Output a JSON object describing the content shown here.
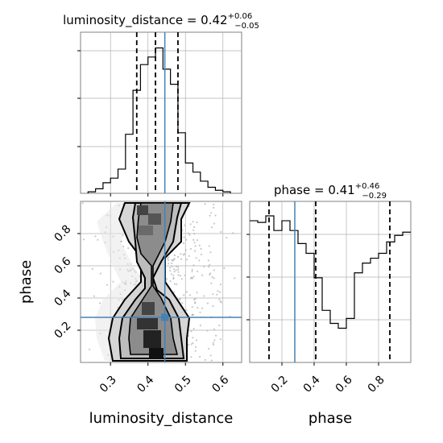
{
  "colors": {
    "truth": "#4682b4",
    "grid": "#b0b0b0",
    "hist": "#000000",
    "scatter": "#9a9a9a"
  },
  "chart_data": [
    {
      "panel": "luminosity_distance-histogram",
      "type": "histogram",
      "title_main": "luminosity_distance = 0.42",
      "title_sup": "+0.06",
      "title_sub": "−0.05",
      "xlim": [
        0.22,
        0.65
      ],
      "grid": true,
      "bin_edges": [
        0.24,
        0.26,
        0.28,
        0.3,
        0.32,
        0.34,
        0.36,
        0.38,
        0.4,
        0.42,
        0.44,
        0.46,
        0.48,
        0.5,
        0.52,
        0.54,
        0.56,
        0.58,
        0.6,
        0.62
      ],
      "counts_norm": [
        0.01,
        0.03,
        0.07,
        0.1,
        0.16,
        0.39,
        0.68,
        0.85,
        0.9,
        0.96,
        0.82,
        0.72,
        0.4,
        0.2,
        0.14,
        0.08,
        0.04,
        0.02,
        0.01
      ],
      "quantiles": [
        0.37,
        0.42,
        0.48
      ],
      "truth": 0.445
    },
    {
      "panel": "phase-histogram",
      "type": "histogram",
      "title_main": "phase = 0.41",
      "title_sup": "+0.46",
      "title_sub": "−0.29",
      "xlim": [
        0.0,
        1.0
      ],
      "xticks": [
        "0.2",
        "0.4",
        "0.6",
        "0.8"
      ],
      "xlabel": "phase",
      "grid": true,
      "bin_edges": [
        0.0,
        0.05,
        0.1,
        0.15,
        0.2,
        0.25,
        0.3,
        0.35,
        0.4,
        0.45,
        0.5,
        0.55,
        0.6,
        0.65,
        0.7,
        0.75,
        0.8,
        0.85,
        0.9,
        0.95,
        1.0
      ],
      "counts_norm": [
        0.87,
        0.86,
        0.9,
        0.81,
        0.87,
        0.81,
        0.73,
        0.67,
        0.52,
        0.32,
        0.24,
        0.21,
        0.27,
        0.55,
        0.61,
        0.64,
        0.67,
        0.74,
        0.78,
        0.8
      ],
      "quantiles": [
        0.12,
        0.41,
        0.87
      ],
      "truth": 0.28
    },
    {
      "panel": "2d-density",
      "type": "scatter",
      "xlim": [
        0.22,
        0.65
      ],
      "ylim": [
        0.0,
        1.0
      ],
      "xticks": [
        "0.3",
        "0.4",
        "0.5",
        "0.6"
      ],
      "yticks": [
        "0.2",
        "0.4",
        "0.6",
        "0.8"
      ],
      "xlabel": "luminosity_distance",
      "ylabel": "phase",
      "grid": true,
      "truth": [
        0.445,
        0.28
      ]
    }
  ]
}
